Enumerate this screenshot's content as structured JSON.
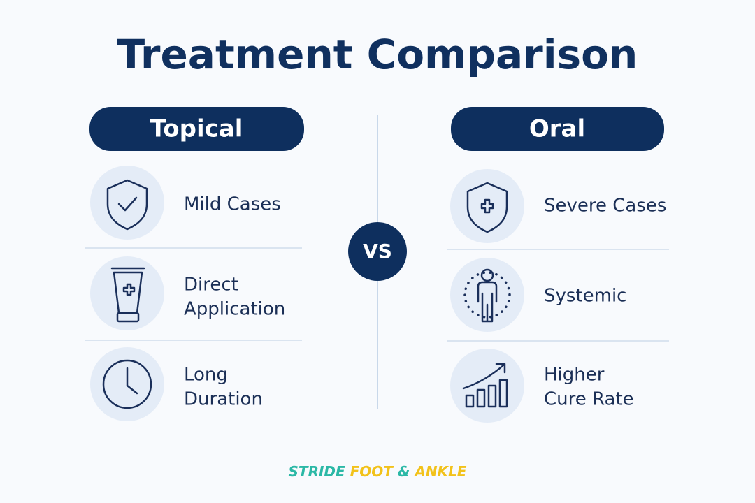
{
  "title": "Treatment Comparison",
  "columns": [
    {
      "header": "Topical",
      "items": [
        {
          "lines": [
            "Mild Cases"
          ]
        },
        {
          "lines": [
            "Direct",
            "Application"
          ]
        },
        {
          "lines": [
            "Long",
            "Duration"
          ]
        }
      ]
    },
    {
      "header": "Oral",
      "items": [
        {
          "lines": [
            "Severe Cases"
          ]
        },
        {
          "lines": [
            "Systemic"
          ]
        },
        {
          "lines": [
            "Higher",
            "Cure Rate"
          ]
        }
      ]
    }
  ],
  "vs": "VS",
  "brand": [
    "STRIDE",
    "FOOT",
    "&",
    "ANKLE"
  ]
}
